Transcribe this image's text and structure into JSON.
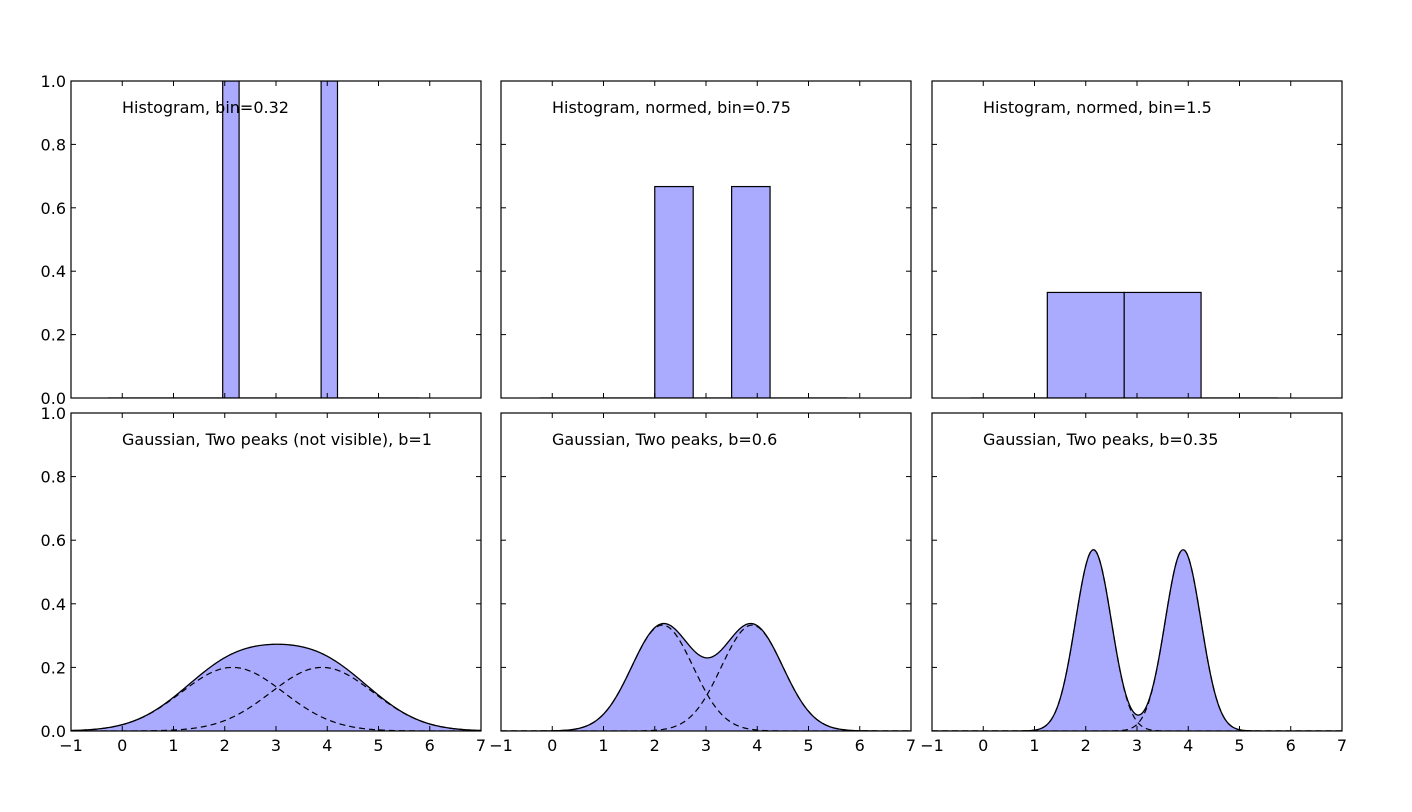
{
  "chart_data": [
    {
      "type": "bar",
      "title": "Histogram, bin=0.32",
      "xlim": [
        -1,
        7
      ],
      "ylim": [
        0,
        1
      ],
      "xticks": [
        "",
        "",
        "",
        "",
        "",
        "",
        "",
        "",
        ""
      ],
      "yticks": [
        "0.0",
        "0.2",
        "0.4",
        "0.6",
        "0.8",
        "1.0"
      ],
      "bins": [
        {
          "x0": -0.28,
          "x1": 0.04,
          "value": 0
        },
        {
          "x0": 0.04,
          "x1": 0.36,
          "value": 0
        },
        {
          "x0": 0.36,
          "x1": 0.68,
          "value": 0
        },
        {
          "x0": 0.68,
          "x1": 1.0,
          "value": 0
        },
        {
          "x0": 1.0,
          "x1": 1.32,
          "value": 0
        },
        {
          "x0": 1.32,
          "x1": 1.64,
          "value": 0
        },
        {
          "x0": 1.64,
          "x1": 1.96,
          "value": 0
        },
        {
          "x0": 1.96,
          "x1": 2.28,
          "value": 1
        },
        {
          "x0": 2.28,
          "x1": 2.6,
          "value": 0
        },
        {
          "x0": 2.6,
          "x1": 2.92,
          "value": 0
        },
        {
          "x0": 2.92,
          "x1": 3.24,
          "value": 0
        },
        {
          "x0": 3.24,
          "x1": 3.56,
          "value": 0
        },
        {
          "x0": 3.56,
          "x1": 3.88,
          "value": 0
        },
        {
          "x0": 3.88,
          "x1": 4.2,
          "value": 1
        },
        {
          "x0": 4.2,
          "x1": 4.52,
          "value": 0
        },
        {
          "x0": 4.52,
          "x1": 4.84,
          "value": 0
        },
        {
          "x0": 4.84,
          "x1": 5.16,
          "value": 0
        },
        {
          "x0": 5.16,
          "x1": 5.48,
          "value": 0
        },
        {
          "x0": 5.48,
          "x1": 5.8,
          "value": 0
        }
      ]
    },
    {
      "type": "bar",
      "title": "Histogram, normed, bin=0.75",
      "xlim": [
        -1,
        7
      ],
      "ylim": [
        0,
        1
      ],
      "xticks": [
        "",
        "",
        "",
        "",
        "",
        "",
        "",
        "",
        ""
      ],
      "yticks": [
        "",
        "",
        "",
        "",
        "",
        ""
      ],
      "bins": [
        {
          "x0": -0.25,
          "x1": 0.5,
          "value": 0
        },
        {
          "x0": 0.5,
          "x1": 1.25,
          "value": 0
        },
        {
          "x0": 1.25,
          "x1": 2.0,
          "value": 0
        },
        {
          "x0": 2.0,
          "x1": 2.75,
          "value": 0.667
        },
        {
          "x0": 2.75,
          "x1": 3.5,
          "value": 0
        },
        {
          "x0": 3.5,
          "x1": 4.25,
          "value": 0.667
        },
        {
          "x0": 4.25,
          "x1": 5.0,
          "value": 0
        },
        {
          "x0": 5.0,
          "x1": 5.75,
          "value": 0
        }
      ]
    },
    {
      "type": "bar",
      "title": "Histogram, normed, bin=1.5",
      "xlim": [
        -1,
        7
      ],
      "ylim": [
        0,
        1
      ],
      "xticks": [
        "",
        "",
        "",
        "",
        "",
        "",
        "",
        "",
        ""
      ],
      "yticks": [
        "",
        "",
        "",
        "",
        "",
        ""
      ],
      "bins": [
        {
          "x0": -0.25,
          "x1": 1.25,
          "value": 0
        },
        {
          "x0": 1.25,
          "x1": 2.75,
          "value": 0.333
        },
        {
          "x0": 2.75,
          "x1": 4.25,
          "value": 0.333
        },
        {
          "x0": 4.25,
          "x1": 5.75,
          "value": 0
        }
      ]
    },
    {
      "type": "area",
      "title": "Gaussian, Two peaks (not visible), b=1",
      "xlim": [
        -1,
        7
      ],
      "ylim": [
        0,
        1
      ],
      "xticks": [
        "−1",
        "0",
        "1",
        "2",
        "3",
        "4",
        "5",
        "6",
        "7"
      ],
      "yticks": [
        "0.0",
        "0.2",
        "0.4",
        "0.6",
        "0.8",
        "1.0"
      ],
      "bandwidth": 1,
      "peaks": [
        2.15,
        3.9
      ],
      "peak_heights": [
        0.2,
        0.2
      ],
      "max_density": 0.28
    },
    {
      "type": "area",
      "title": "Gaussian, Two peaks, b=0.6",
      "xlim": [
        -1,
        7
      ],
      "ylim": [
        0,
        1
      ],
      "xticks": [
        "−1",
        "0",
        "1",
        "2",
        "3",
        "4",
        "5",
        "6",
        "7"
      ],
      "yticks": [
        "",
        "",
        "",
        "",
        "",
        ""
      ],
      "bandwidth": 0.6,
      "peaks": [
        2.15,
        3.9
      ],
      "peak_heights": [
        0.333,
        0.333
      ],
      "max_density": 0.34
    },
    {
      "type": "area",
      "title": "Gaussian, Two peaks, b=0.35",
      "xlim": [
        -1,
        7
      ],
      "ylim": [
        0,
        1
      ],
      "xticks": [
        "−1",
        "0",
        "1",
        "2",
        "3",
        "4",
        "5",
        "6",
        "7"
      ],
      "yticks": [
        "",
        "",
        "",
        "",
        "",
        ""
      ],
      "bandwidth": 0.35,
      "peaks": [
        2.15,
        3.9
      ],
      "peak_heights": [
        0.57,
        0.57
      ],
      "max_density": 0.57
    }
  ]
}
